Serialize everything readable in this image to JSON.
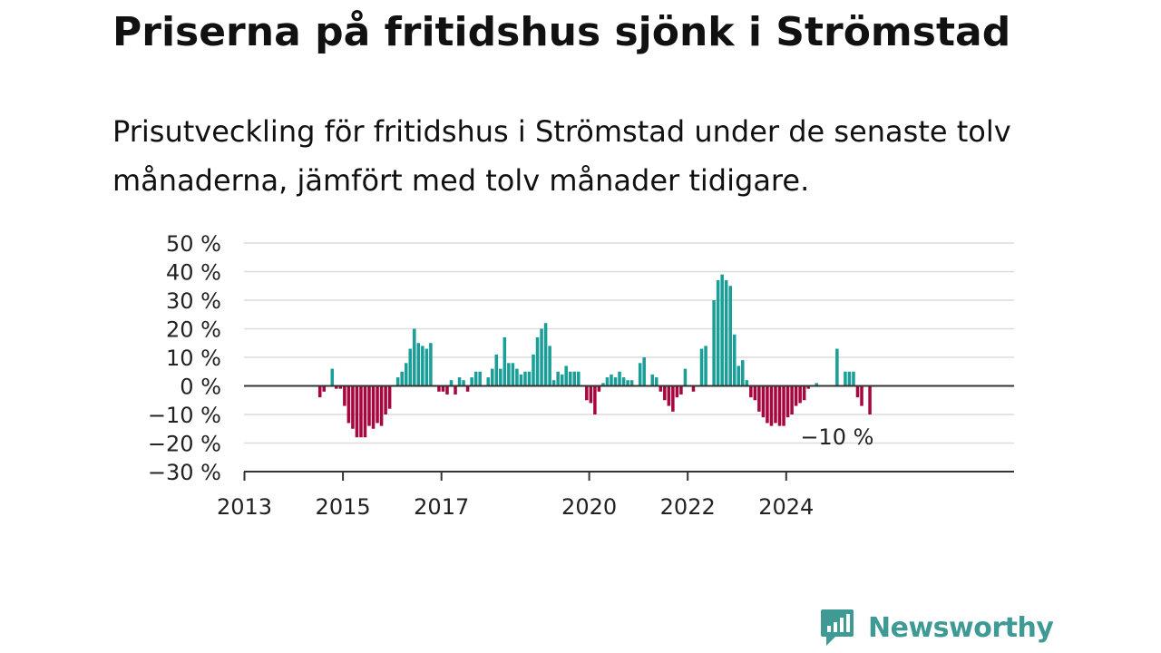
{
  "title": "Priserna på fritidshus sjönk i Strömstad",
  "subtitle": "Prisutveckling för fritidshus i Strömstad under de senaste tolv månaderna, jämfört med tolv månader tidigare.",
  "brand": {
    "name": "Newsworthy"
  },
  "colors": {
    "positive": "#1a9e98",
    "negative": "#a8063f",
    "brand": "#3f9a95"
  },
  "chart_data": {
    "type": "bar",
    "y_unit": "%",
    "ylim": [
      -30,
      50
    ],
    "y_ticks": [
      {
        "value": 50,
        "label": "50 %"
      },
      {
        "value": 40,
        "label": "40 %"
      },
      {
        "value": 30,
        "label": "30 %"
      },
      {
        "value": 20,
        "label": "20 %"
      },
      {
        "value": 10,
        "label": "10 %"
      },
      {
        "value": 0,
        "label": "0 %"
      },
      {
        "value": -10,
        "label": "−10 %"
      },
      {
        "value": -20,
        "label": "−20 %"
      },
      {
        "value": -30,
        "label": "−30 %"
      }
    ],
    "x_ticks": [
      {
        "date": "2013-01",
        "label": "2013"
      },
      {
        "date": "2015-01",
        "label": "2015"
      },
      {
        "date": "2017-01",
        "label": "2017"
      },
      {
        "date": "2020-01",
        "label": "2020"
      },
      {
        "date": "2022-01",
        "label": "2022"
      },
      {
        "date": "2024-01",
        "label": "2024"
      }
    ],
    "start_month": "2013-01",
    "grid": true,
    "annotation": {
      "date": "2025-01",
      "value": -10,
      "label": "−10 %"
    },
    "values": [
      0,
      0,
      0,
      0,
      0,
      0,
      0,
      0,
      0,
      0,
      0,
      0,
      0,
      0,
      0,
      0,
      0,
      0,
      -4,
      -2,
      0,
      6,
      -1,
      -1,
      -7,
      -13,
      -15,
      -18,
      -18,
      -18,
      -14,
      -15,
      -13,
      -14,
      -10,
      -8,
      0,
      3,
      5,
      8,
      13,
      20,
      15,
      14,
      13,
      15,
      0,
      -2,
      -2,
      -3,
      2,
      -3,
      3,
      2,
      -2,
      3,
      5,
      5,
      0,
      3,
      6,
      11,
      6,
      17,
      8,
      8,
      6,
      4,
      5,
      5,
      11,
      17,
      20,
      22,
      14,
      2,
      5,
      4,
      7,
      5,
      5,
      5,
      0,
      -5,
      -6,
      -10,
      -2,
      1,
      3,
      4,
      3,
      5,
      3,
      2,
      2,
      0,
      8,
      10,
      0,
      4,
      3,
      -2,
      -5,
      -7,
      -9,
      -4,
      -3,
      6,
      0,
      -2,
      0,
      13,
      14,
      0,
      30,
      37,
      39,
      37,
      35,
      18,
      7,
      9,
      2,
      -4,
      -5,
      -9,
      -11,
      -13,
      -14,
      -13,
      -14,
      -14,
      -11,
      -10,
      -7,
      -6,
      -5,
      -1,
      0,
      1,
      0,
      0,
      0,
      0,
      13,
      0,
      5,
      5,
      5,
      -4,
      -7,
      0,
      -10
    ]
  }
}
